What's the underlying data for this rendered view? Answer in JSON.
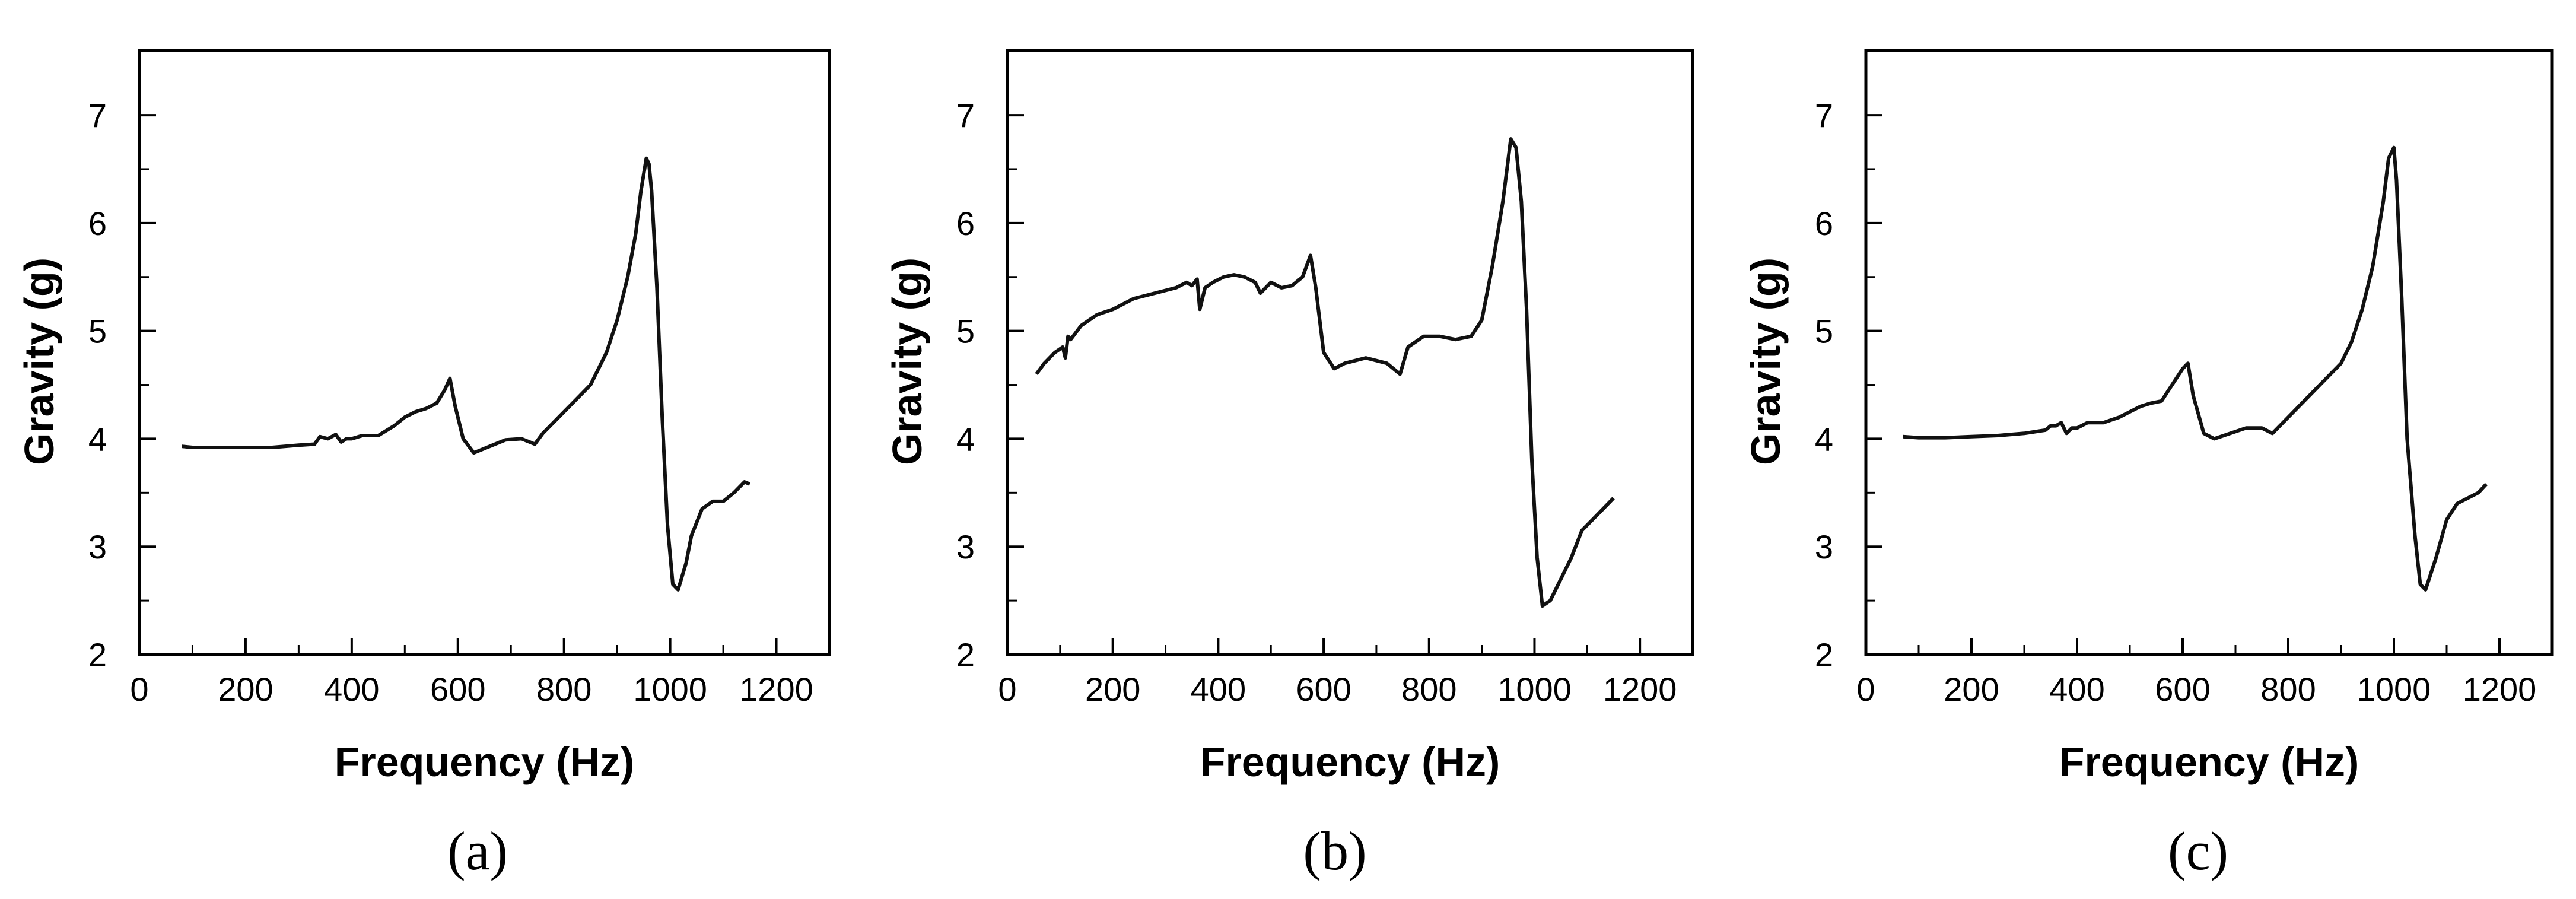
{
  "chart_data": [
    {
      "type": "line",
      "caption": "(a)",
      "xlabel": "Frequency (Hz)",
      "ylabel": "Gravity (g)",
      "xlim": [
        0,
        1300
      ],
      "ylim": [
        2,
        7.6
      ],
      "xticks": [
        "0",
        "200",
        "400",
        "600",
        "800",
        "1000",
        "1200"
      ],
      "yticks": [
        "2",
        "3",
        "4",
        "5",
        "6",
        "7"
      ],
      "grid": false,
      "x": [
        80,
        100,
        150,
        200,
        250,
        300,
        330,
        340,
        355,
        370,
        380,
        390,
        400,
        420,
        450,
        480,
        500,
        520,
        540,
        560,
        575,
        585,
        595,
        610,
        630,
        660,
        690,
        720,
        745,
        760,
        790,
        820,
        850,
        880,
        900,
        920,
        935,
        945,
        955,
        960,
        965,
        975,
        985,
        995,
        1005,
        1015,
        1030,
        1040,
        1060,
        1080,
        1100,
        1120,
        1140,
        1150
      ],
      "y": [
        3.93,
        3.92,
        3.92,
        3.92,
        3.92,
        3.94,
        3.95,
        4.02,
        4.0,
        4.04,
        3.97,
        4.0,
        4.0,
        4.03,
        4.03,
        4.12,
        4.2,
        4.25,
        4.28,
        4.33,
        4.45,
        4.56,
        4.3,
        4.0,
        3.87,
        3.93,
        3.99,
        4.0,
        3.95,
        4.05,
        4.2,
        4.35,
        4.5,
        4.8,
        5.1,
        5.5,
        5.9,
        6.3,
        6.6,
        6.55,
        6.3,
        5.4,
        4.2,
        3.2,
        2.65,
        2.6,
        2.85,
        3.1,
        3.35,
        3.42,
        3.42,
        3.5,
        3.6,
        3.58
      ]
    },
    {
      "type": "line",
      "caption": "(b)",
      "xlabel": "Frequency (Hz)",
      "ylabel": "Gravity (g)",
      "xlim": [
        0,
        1300
      ],
      "ylim": [
        2,
        7.6
      ],
      "xticks": [
        "0",
        "200",
        "400",
        "600",
        "800",
        "1000",
        "1200"
      ],
      "yticks": [
        "2",
        "3",
        "4",
        "5",
        "6",
        "7"
      ],
      "grid": false,
      "x": [
        55,
        70,
        90,
        105,
        110,
        115,
        120,
        140,
        170,
        200,
        240,
        280,
        320,
        340,
        350,
        360,
        365,
        375,
        390,
        410,
        430,
        450,
        470,
        480,
        500,
        520,
        540,
        560,
        575,
        585,
        600,
        620,
        640,
        680,
        720,
        745,
        760,
        790,
        820,
        850,
        880,
        900,
        920,
        940,
        955,
        965,
        975,
        985,
        995,
        1005,
        1015,
        1030,
        1050,
        1070,
        1090,
        1110,
        1130,
        1150
      ],
      "y": [
        4.6,
        4.7,
        4.8,
        4.85,
        4.75,
        4.95,
        4.92,
        5.05,
        5.15,
        5.2,
        5.3,
        5.35,
        5.4,
        5.45,
        5.42,
        5.48,
        5.2,
        5.4,
        5.45,
        5.5,
        5.52,
        5.5,
        5.45,
        5.35,
        5.45,
        5.4,
        5.42,
        5.5,
        5.7,
        5.4,
        4.8,
        4.65,
        4.7,
        4.75,
        4.7,
        4.6,
        4.85,
        4.95,
        4.95,
        4.92,
        4.95,
        5.1,
        5.6,
        6.2,
        6.78,
        6.7,
        6.2,
        5.2,
        3.8,
        2.9,
        2.45,
        2.5,
        2.7,
        2.9,
        3.15,
        3.25,
        3.35,
        3.45
      ]
    },
    {
      "type": "line",
      "caption": "(c)",
      "xlabel": "Frequency (Hz)",
      "ylabel": "Gravity (g)",
      "xlim": [
        0,
        1300
      ],
      "ylim": [
        2,
        7.6
      ],
      "xticks": [
        "0",
        "200",
        "400",
        "600",
        "800",
        "1000",
        "1200"
      ],
      "yticks": [
        "2",
        "3",
        "4",
        "5",
        "6",
        "7"
      ],
      "grid": false,
      "x": [
        70,
        100,
        150,
        200,
        250,
        300,
        340,
        350,
        360,
        370,
        380,
        390,
        400,
        420,
        450,
        480,
        500,
        520,
        540,
        560,
        580,
        600,
        610,
        620,
        640,
        660,
        690,
        720,
        750,
        770,
        790,
        820,
        850,
        880,
        900,
        920,
        940,
        960,
        980,
        990,
        1000,
        1005,
        1015,
        1025,
        1040,
        1050,
        1060,
        1080,
        1100,
        1120,
        1140,
        1160,
        1175
      ],
      "y": [
        4.02,
        4.01,
        4.01,
        4.02,
        4.03,
        4.05,
        4.08,
        4.12,
        4.12,
        4.15,
        4.05,
        4.1,
        4.1,
        4.15,
        4.15,
        4.2,
        4.25,
        4.3,
        4.33,
        4.35,
        4.5,
        4.65,
        4.7,
        4.4,
        4.05,
        4.0,
        4.05,
        4.1,
        4.1,
        4.05,
        4.15,
        4.3,
        4.45,
        4.6,
        4.7,
        4.9,
        5.2,
        5.6,
        6.2,
        6.6,
        6.7,
        6.4,
        5.3,
        4.0,
        3.1,
        2.65,
        2.6,
        2.9,
        3.25,
        3.4,
        3.45,
        3.5,
        3.58
      ]
    }
  ]
}
